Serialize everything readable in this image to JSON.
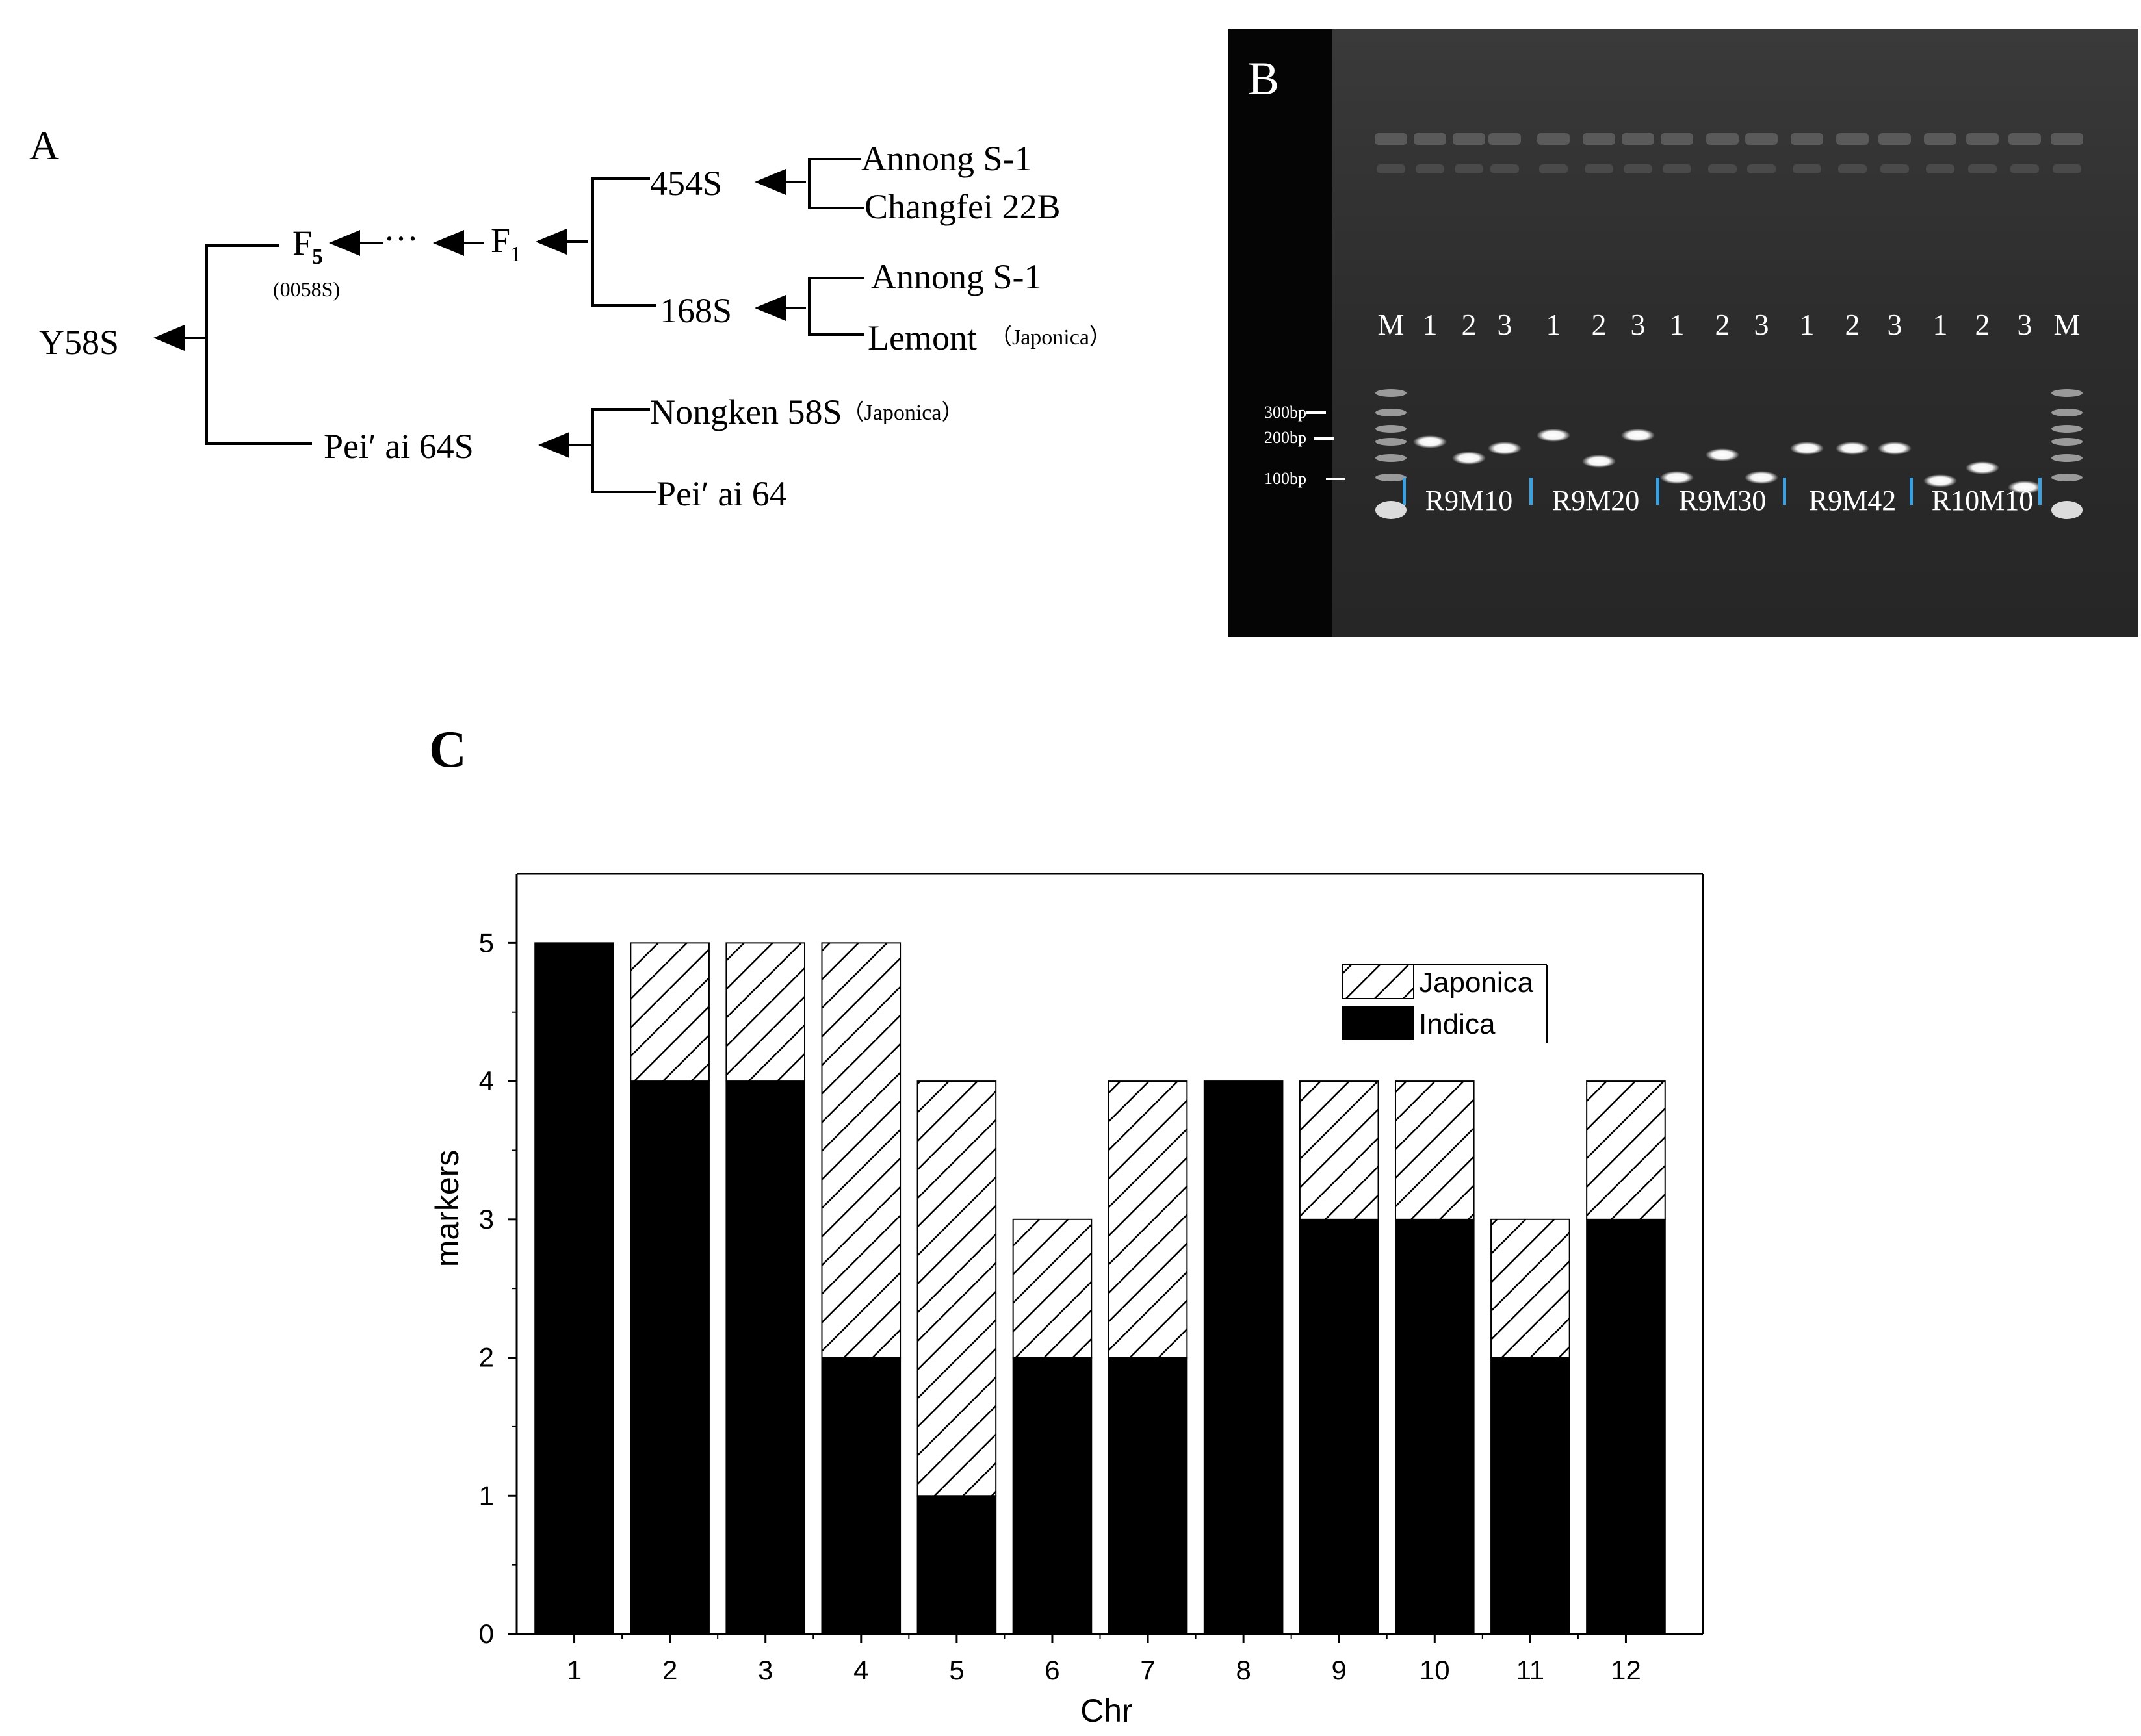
{
  "panel_a": {
    "label": "A",
    "nodes": {
      "y58s": "Y58S",
      "f5": "F",
      "f5_sub": "5",
      "f5_note": "(0058S)",
      "dots": "···",
      "f1": "F",
      "f1_sub": "1",
      "s454": "454S",
      "annong1": "Annong S-1",
      "changfei": "Changfei 22B",
      "s168": "168S",
      "annong2": "Annong S-1",
      "lemont": "Lemont",
      "lemont_note": "（Japonica）",
      "peiai64s": "Pei′ ai 64S",
      "nongken": "Nongken 58S",
      "nongken_note": "（Japonica）",
      "peiai64": "Pei′ ai 64"
    }
  },
  "panel_b": {
    "label": "B",
    "lane_labels": [
      "M",
      "1",
      "2",
      "3",
      "1",
      "2",
      "3",
      "1",
      "2",
      "3",
      "1",
      "2",
      "3",
      "1",
      "2",
      "3",
      "M"
    ],
    "ladder": [
      "300bp",
      "200bp",
      "100bp"
    ],
    "markers": [
      "R9M10",
      "R9M20",
      "R9M30",
      "R9M42",
      "R10M10"
    ]
  },
  "panel_c": {
    "label": "C"
  },
  "chart_data": {
    "type": "bar",
    "stacked": true,
    "categories": [
      "1",
      "2",
      "3",
      "4",
      "5",
      "6",
      "7",
      "8",
      "9",
      "10",
      "11",
      "12"
    ],
    "series": [
      {
        "name": "Indica",
        "values": [
          5,
          4,
          4,
          2,
          1,
          2,
          2,
          4,
          3,
          3,
          2,
          3
        ],
        "color": "#000000"
      },
      {
        "name": "Japonica",
        "values": [
          0,
          1,
          1,
          3,
          3,
          1,
          2,
          0,
          1,
          1,
          1,
          1
        ],
        "pattern": "diagonal-hatch"
      }
    ],
    "title": "",
    "xlabel": "Chr",
    "ylabel": "markers",
    "ylim": [
      0,
      5.5
    ],
    "yticks": [
      "0",
      "1",
      "2",
      "3",
      "4",
      "5"
    ],
    "grid": false,
    "legend_position": "top-right"
  }
}
